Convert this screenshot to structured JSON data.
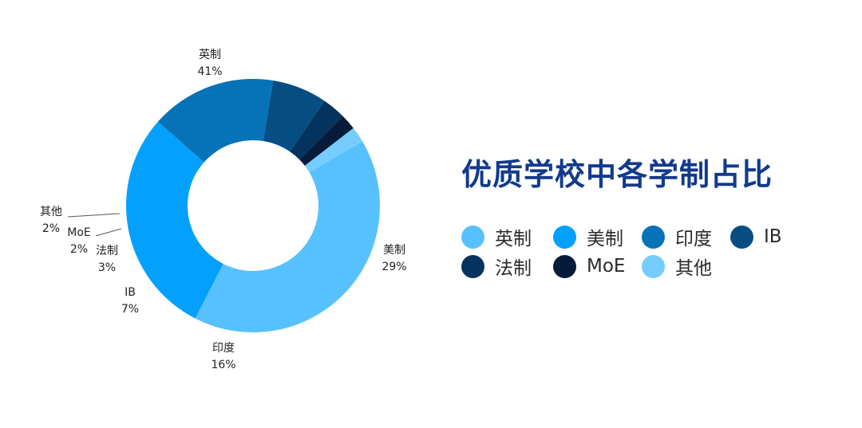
{
  "chart_data": {
    "type": "pie",
    "donut": true,
    "title": "优质学校中各学制占比",
    "categories": [
      "英制",
      "美制",
      "印度",
      "IB",
      "法制",
      "MoE",
      "其他"
    ],
    "values": [
      41,
      29,
      16,
      7,
      3,
      2,
      2
    ],
    "value_labels": [
      "41%",
      "29%",
      "16%",
      "7%",
      "3%",
      "2%",
      "2%"
    ],
    "colors": [
      "#57c1fe",
      "#03a0fe",
      "#0673b9",
      "#064d82",
      "#05335f",
      "#061a39",
      "#75ccff"
    ],
    "legend_position": "right"
  }
}
